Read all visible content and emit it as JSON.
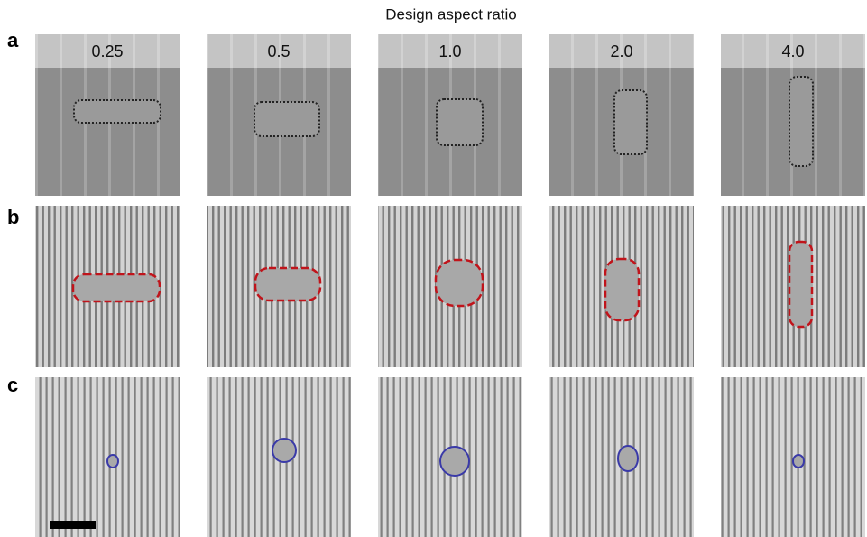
{
  "figure": {
    "title": "Design aspect ratio",
    "panels": [
      {
        "label": "a"
      },
      {
        "label": "b"
      },
      {
        "label": "c"
      }
    ],
    "columns": [
      "0.25",
      "0.5",
      "1.0",
      "2.0",
      "4.0"
    ]
  }
}
